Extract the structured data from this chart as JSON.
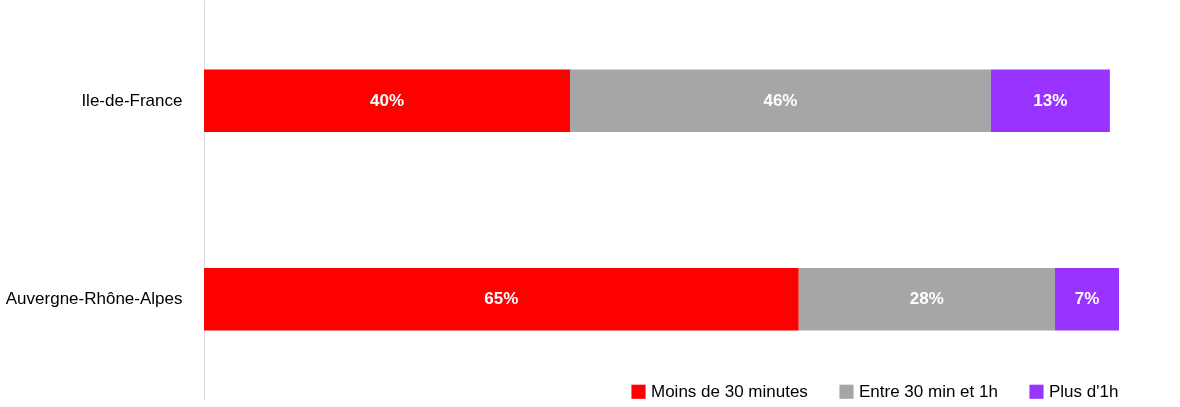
{
  "chart_data": {
    "type": "bar",
    "orientation": "horizontal",
    "stacked": true,
    "legend": "bottom right",
    "tick_labels": "y",
    "categories": [
      "Ile-de-France",
      "Auvergne-Rhône-Alpes"
    ],
    "series": [
      {
        "name": "Moins de 30 minutes",
        "color": "#ff0000",
        "values": [
          40,
          65
        ],
        "value_labels": [
          "40%",
          "65%"
        ]
      },
      {
        "name": "Entre 30 min et 1h",
        "color": "#a6a6a6",
        "values": [
          46,
          28
        ],
        "value_labels": [
          "46%",
          "28%"
        ]
      },
      {
        "name": "Plus d'1h",
        "color": "#9933ff",
        "values": [
          13,
          7
        ],
        "value_labels": [
          "13%",
          "7%"
        ]
      }
    ]
  }
}
